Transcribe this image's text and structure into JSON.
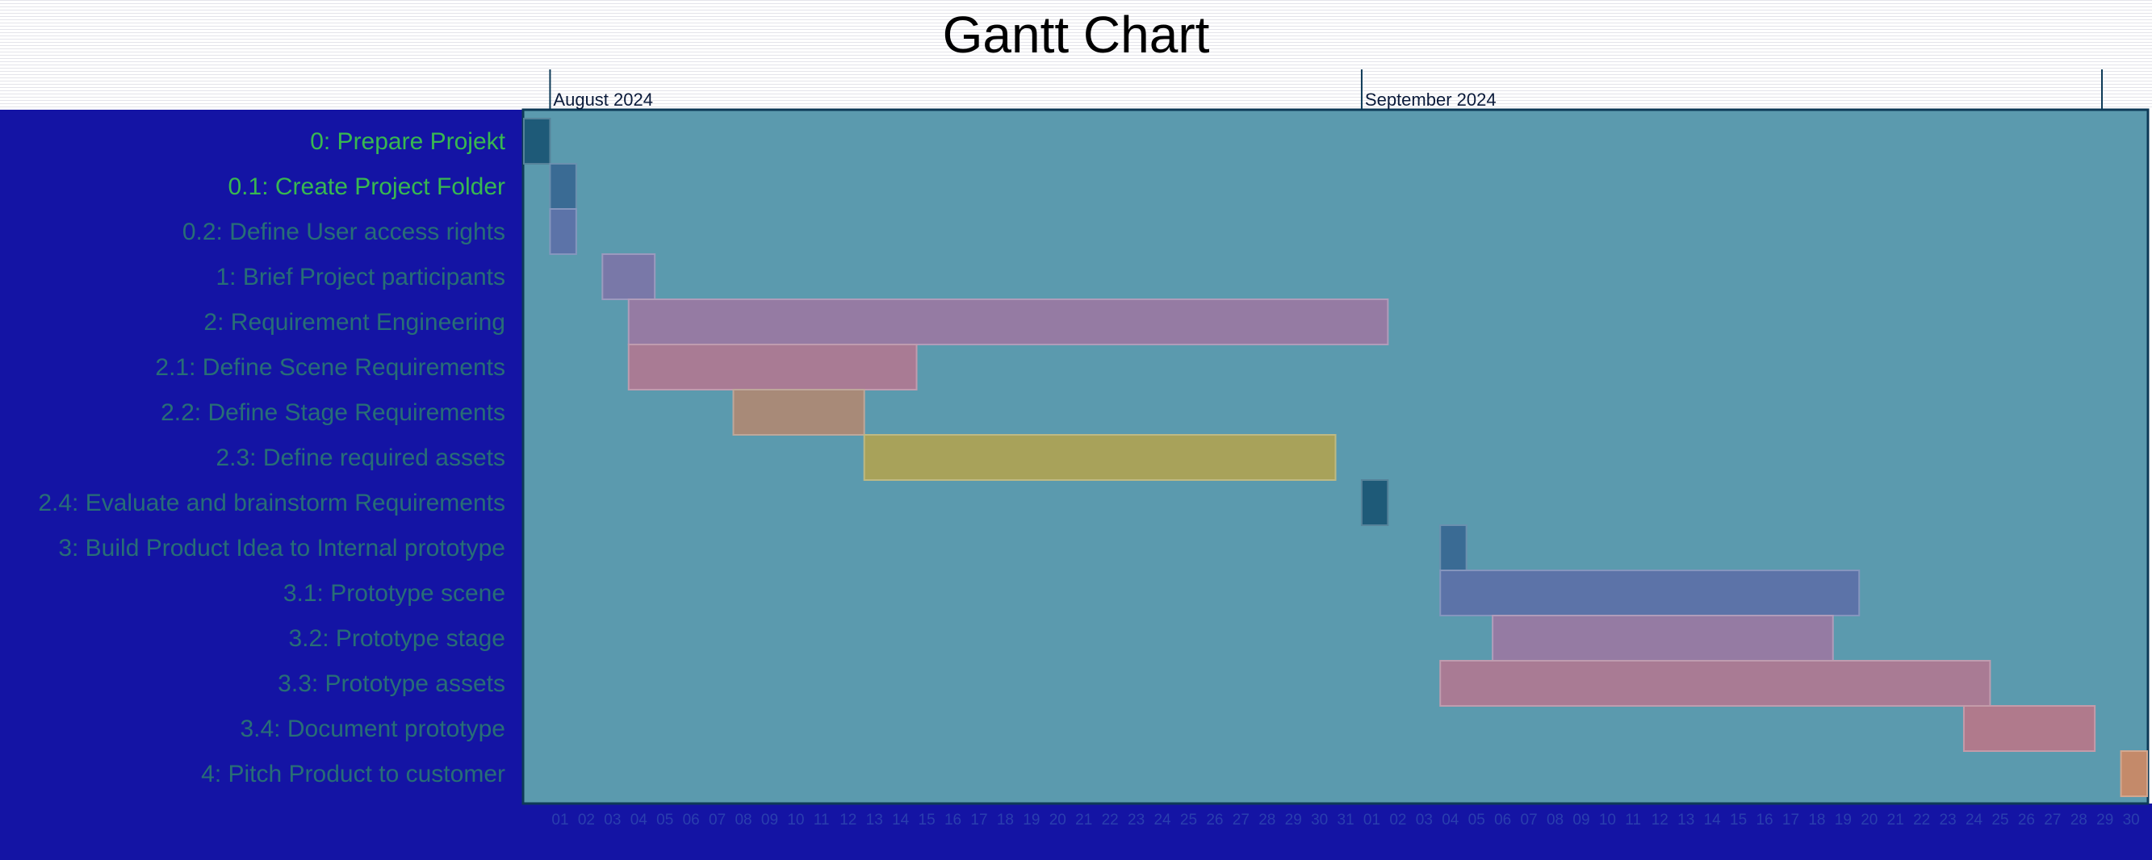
{
  "chart_data": {
    "type": "gantt",
    "title": "Gantt Chart",
    "timeline": {
      "start": "2024-07-31",
      "end": "2024-10-01",
      "months": [
        {
          "label": "August 2024",
          "start": "2024-08-01"
        },
        {
          "label": "September 2024",
          "start": "2024-09-01"
        }
      ],
      "day_labels": [
        "01",
        "02",
        "03",
        "04",
        "05",
        "06",
        "07",
        "08",
        "09",
        "10",
        "11",
        "12",
        "13",
        "14",
        "15",
        "16",
        "17",
        "18",
        "19",
        "20",
        "21",
        "22",
        "23",
        "24",
        "25",
        "26",
        "27",
        "28",
        "29",
        "30",
        "31",
        "01",
        "02",
        "03",
        "04",
        "05",
        "06",
        "07",
        "08",
        "09",
        "10",
        "11",
        "12",
        "13",
        "14",
        "15",
        "16",
        "17",
        "18",
        "19",
        "20",
        "21",
        "22",
        "23",
        "24",
        "25",
        "26",
        "27",
        "28",
        "29",
        "30"
      ]
    },
    "tasks": [
      {
        "label": "0: Prepare Projekt",
        "start": "2024-07-31",
        "end": "2024-08-01",
        "color": "#1e5a78"
      },
      {
        "label": "0.1: Create Project Folder",
        "start": "2024-08-01",
        "end": "2024-08-02",
        "color": "#3a6b94"
      },
      {
        "label": "0.2: Define User access rights",
        "start": "2024-08-01",
        "end": "2024-08-02",
        "color": "#5c73a8"
      },
      {
        "label": "1: Brief Project participants",
        "start": "2024-08-03",
        "end": "2024-08-05",
        "color": "#7978a8"
      },
      {
        "label": "2: Requirement Engineering",
        "start": "2024-08-04",
        "end": "2024-09-02",
        "color": "#957ba3"
      },
      {
        "label": "2.1: Define Scene Requirements",
        "start": "2024-08-04",
        "end": "2024-08-15",
        "color": "#a97b94"
      },
      {
        "label": "2.2: Define Stage Requirements",
        "start": "2024-08-08",
        "end": "2024-08-13",
        "color": "#a88a78"
      },
      {
        "label": "2.3: Define required assets",
        "start": "2024-08-13",
        "end": "2024-08-31",
        "color": "#a8a25a"
      },
      {
        "label": "2.4: Evaluate and brainstorm Requirements",
        "start": "2024-09-01",
        "end": "2024-09-02",
        "color": "#1e5a78"
      },
      {
        "label": "3: Build Product Idea to Internal prototype",
        "start": "2024-09-04",
        "end": "2024-09-05",
        "color": "#3a6b94"
      },
      {
        "label": "3.1: Prototype scene",
        "start": "2024-09-04",
        "end": "2024-09-20",
        "color": "#5c73a8"
      },
      {
        "label": "3.2: Prototype stage",
        "start": "2024-09-06",
        "end": "2024-09-19",
        "color": "#957ba3"
      },
      {
        "label": "3.3: Prototype assets",
        "start": "2024-09-04",
        "end": "2024-09-25",
        "color": "#a97b94"
      },
      {
        "label": "3.4: Document prototype",
        "start": "2024-09-24",
        "end": "2024-09-29",
        "color": "#b07a8c"
      },
      {
        "label": "4: Pitch Product to customer",
        "start": "2024-09-30",
        "end": "2024-10-01",
        "color": "#c48a6a"
      }
    ]
  },
  "colors": {
    "plot_background": "#5b9aae",
    "label_panel": "#1414a4",
    "label_text": "#38b850",
    "title_text": "#000000"
  }
}
